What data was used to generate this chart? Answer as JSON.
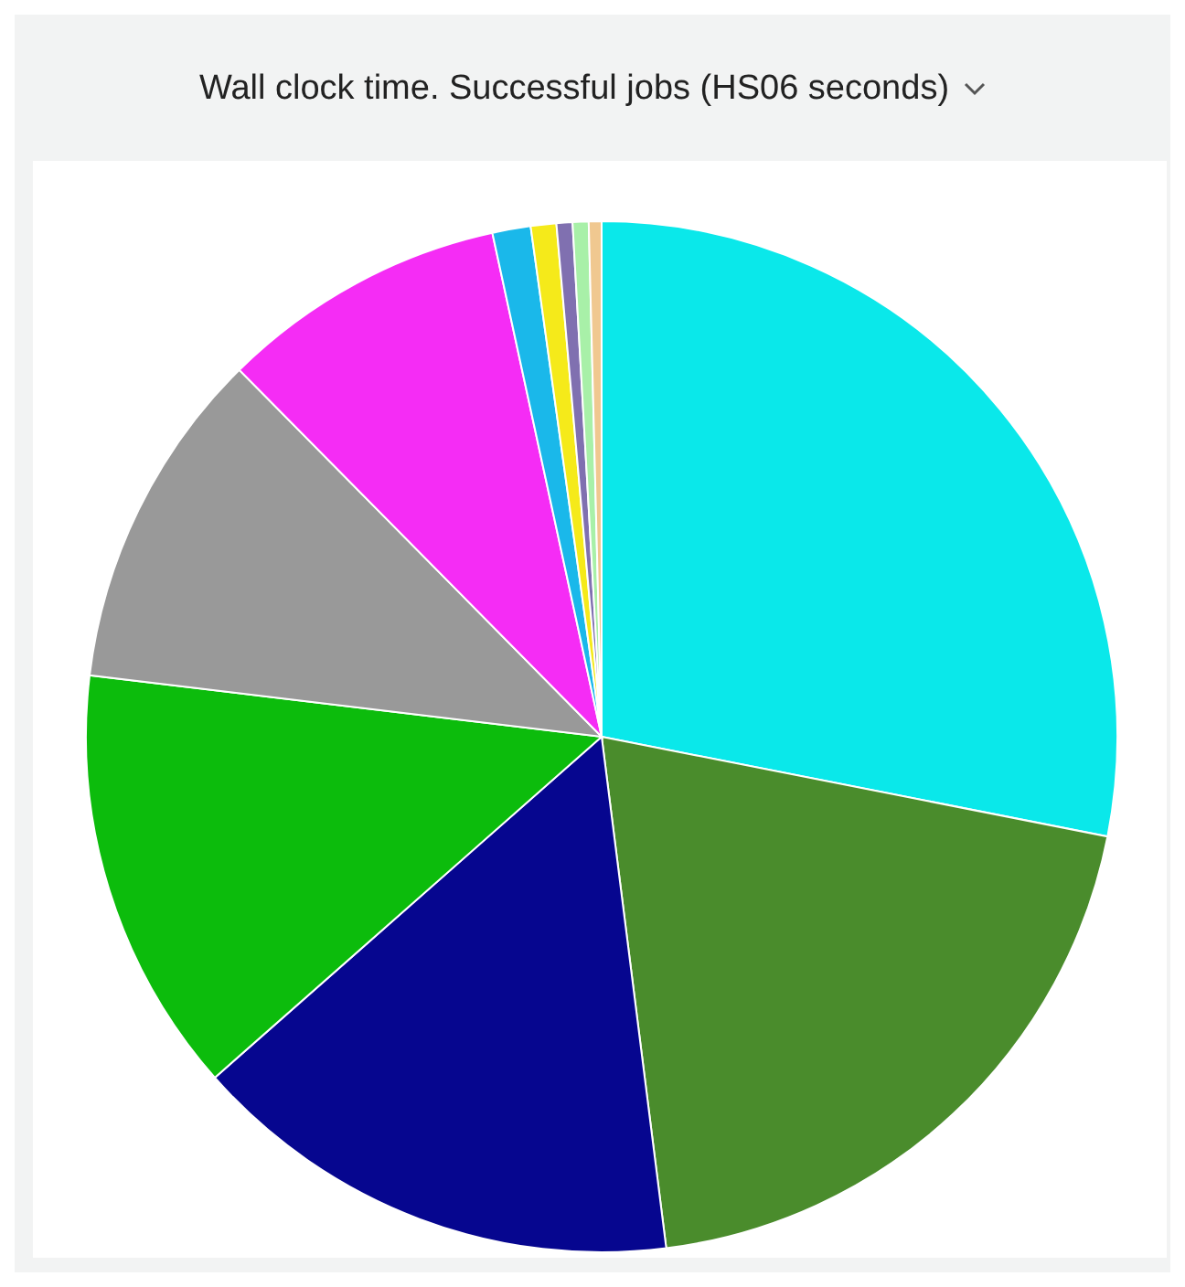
{
  "chart_data": {
    "type": "pie",
    "title": "Wall clock time. Successful jobs (HS06 seconds)",
    "categories": [
      null,
      null,
      null,
      null,
      null,
      null,
      null,
      null,
      null,
      null,
      null
    ],
    "values": [
      28.1,
      19.9,
      15.5,
      13.4,
      10.7,
      9,
      1.2,
      0.8,
      0.5,
      0.5,
      0.4
    ],
    "colors": [
      "#0ae8ea",
      "#4a8c2c",
      "#06068f",
      "#0cbc0c",
      "#999999",
      "#f52cf5",
      "#1ab8ea",
      "#f5ea1a",
      "#8070b0",
      "#a8f0a8",
      "#f0c890"
    ]
  }
}
